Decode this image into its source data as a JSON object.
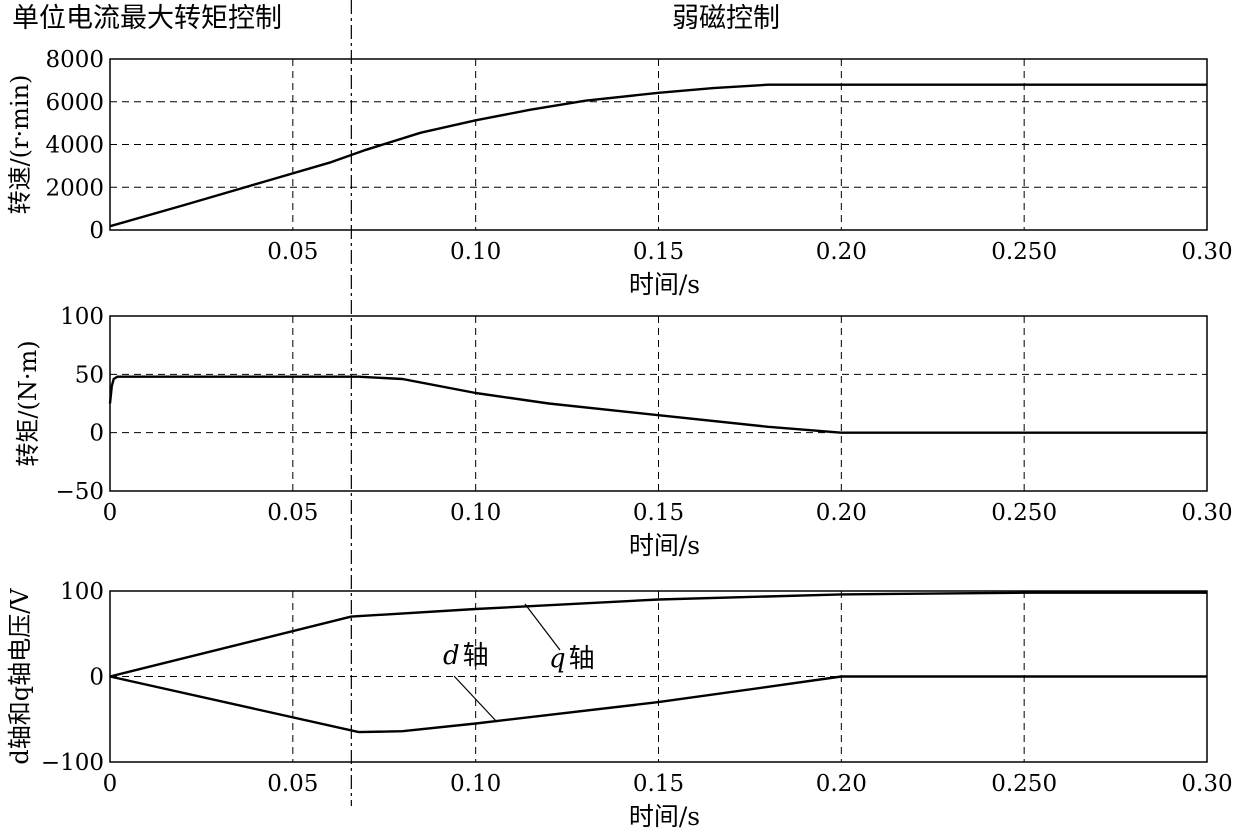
{
  "header": {
    "left_label": "单位电流最大转矩控制",
    "right_label": "弱磁控制",
    "boundary_time": 0.066
  },
  "chart_data": [
    {
      "type": "line",
      "ylabel": "转速/(r·min)",
      "xlabel": "时间/s",
      "xlim": [
        0,
        0.3
      ],
      "ylim": [
        0,
        8000
      ],
      "grid": true,
      "x_tick_labels": [
        "",
        "0.05",
        "0.10",
        "0.15",
        "0.20",
        "0.250",
        "0.30"
      ],
      "y_ticks": [
        0,
        2000,
        4000,
        6000,
        8000
      ],
      "series": [
        {
          "x": [
            0,
            0.02,
            0.04,
            0.06,
            0.07,
            0.085,
            0.1,
            0.115,
            0.13,
            0.15,
            0.165,
            0.18,
            0.2,
            0.25,
            0.3
          ],
          "y": [
            180,
            1150,
            2150,
            3150,
            3750,
            4550,
            5130,
            5630,
            6050,
            6420,
            6640,
            6800,
            6800,
            6800,
            6800
          ]
        }
      ]
    },
    {
      "type": "line",
      "ylabel": "转矩/(N·m)",
      "xlabel": "时间/s",
      "xlim": [
        0,
        0.3
      ],
      "ylim": [
        -50,
        100
      ],
      "grid": true,
      "x_tick_labels": [
        "0",
        "0.05",
        "0.10",
        "0.15",
        "0.20",
        "0.250",
        "0.30"
      ],
      "y_ticks": [
        -50,
        0,
        50,
        100
      ],
      "series": [
        {
          "x": [
            0,
            0.0005,
            0.001,
            0.002,
            0.004,
            0.03,
            0.06,
            0.068,
            0.08,
            0.1,
            0.12,
            0.15,
            0.18,
            0.2,
            0.25,
            0.3
          ],
          "y": [
            25,
            40,
            46,
            48,
            48,
            48,
            48,
            48,
            46,
            34,
            25,
            15,
            5,
            0,
            0,
            0
          ]
        }
      ]
    },
    {
      "type": "line",
      "ylabel": "d轴和q轴电压/V",
      "xlabel": "时间/s",
      "xlim": [
        0,
        0.3
      ],
      "ylim": [
        -100,
        100
      ],
      "grid": true,
      "x_tick_labels": [
        "0",
        "0.05",
        "0.10",
        "0.15",
        "0.20",
        "0.250",
        "0.30"
      ],
      "y_ticks": [
        -100,
        0,
        100
      ],
      "series": [
        {
          "name": "q轴",
          "x": [
            0,
            0.066,
            0.1,
            0.15,
            0.2,
            0.25,
            0.3
          ],
          "y": [
            0,
            70,
            79,
            90,
            96,
            98,
            98
          ]
        },
        {
          "name": "d轴",
          "x": [
            0,
            0.068,
            0.08,
            0.1,
            0.15,
            0.18,
            0.2,
            0.25,
            0.3
          ],
          "y": [
            0,
            -65,
            -64,
            -55,
            -30,
            -12,
            0,
            0,
            0
          ]
        }
      ],
      "annotations": [
        {
          "text": "d",
          "suffix": "轴",
          "target": "d轴"
        },
        {
          "text": "q",
          "suffix": "轴",
          "target": "q轴"
        }
      ]
    }
  ]
}
